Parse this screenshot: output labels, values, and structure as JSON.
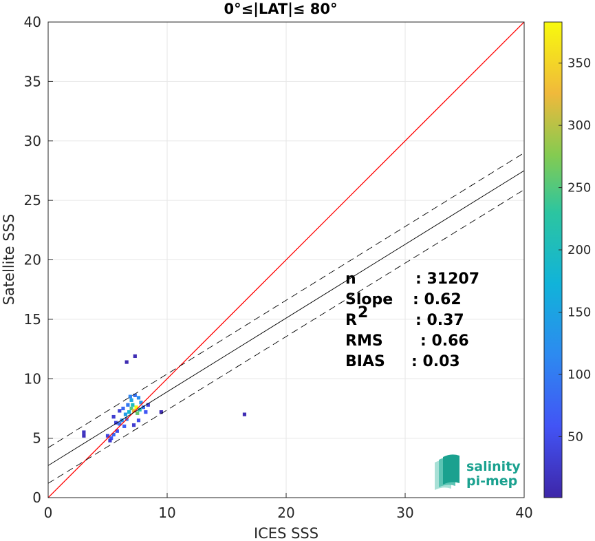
{
  "chart_data": {
    "type": "heatmap",
    "title": "0°≤|LAT|≤ 80°",
    "xlabel": "ICES SSS",
    "ylabel": "Satellite SSS",
    "xlim": [
      0,
      40
    ],
    "ylim": [
      0,
      40
    ],
    "xticks": [
      "0",
      "10",
      "20",
      "30",
      "40"
    ],
    "yticks": [
      "0",
      "5",
      "10",
      "15",
      "20",
      "25",
      "30",
      "35",
      "40"
    ],
    "grid": true,
    "colorbar": {
      "range": [
        1,
        383
      ],
      "ticks": [
        "50",
        "100",
        "150",
        "200",
        "250",
        "300",
        "350"
      ],
      "colormap": "parula"
    },
    "lines": [
      {
        "kind": "one-to-one",
        "color": "#ff0000",
        "x": [
          0,
          40
        ],
        "y": [
          0,
          40
        ]
      },
      {
        "kind": "regression",
        "color": "#000000",
        "x": [
          0,
          40
        ],
        "y": [
          2.7,
          27.5
        ]
      },
      {
        "kind": "regression-plus",
        "color": "#000000",
        "dash": true,
        "x": [
          0,
          40
        ],
        "y": [
          4.2,
          29.0
        ]
      },
      {
        "kind": "regression-minus",
        "color": "#000000",
        "dash": true,
        "x": [
          0,
          40
        ],
        "y": [
          1.2,
          25.9
        ]
      }
    ],
    "density_cells": [
      {
        "x": 3.0,
        "y": 5.5,
        "v": 20
      },
      {
        "x": 3.0,
        "y": 5.2,
        "v": 15
      },
      {
        "x": 5.0,
        "y": 5.2,
        "v": 40
      },
      {
        "x": 5.3,
        "y": 5.0,
        "v": 60
      },
      {
        "x": 5.5,
        "y": 5.3,
        "v": 80
      },
      {
        "x": 5.2,
        "y": 4.8,
        "v": 30
      },
      {
        "x": 5.8,
        "y": 5.6,
        "v": 50
      },
      {
        "x": 6.0,
        "y": 6.2,
        "v": 90
      },
      {
        "x": 6.2,
        "y": 6.5,
        "v": 120
      },
      {
        "x": 6.4,
        "y": 6.0,
        "v": 70
      },
      {
        "x": 6.5,
        "y": 7.0,
        "v": 140
      },
      {
        "x": 6.8,
        "y": 7.2,
        "v": 180
      },
      {
        "x": 6.6,
        "y": 6.6,
        "v": 100
      },
      {
        "x": 7.0,
        "y": 7.5,
        "v": 250
      },
      {
        "x": 7.2,
        "y": 7.3,
        "v": 320
      },
      {
        "x": 7.4,
        "y": 7.6,
        "v": 383
      },
      {
        "x": 7.1,
        "y": 7.8,
        "v": 200
      },
      {
        "x": 7.5,
        "y": 7.1,
        "v": 260
      },
      {
        "x": 7.7,
        "y": 7.4,
        "v": 210
      },
      {
        "x": 7.0,
        "y": 8.2,
        "v": 150
      },
      {
        "x": 6.9,
        "y": 8.5,
        "v": 110
      },
      {
        "x": 7.3,
        "y": 8.6,
        "v": 90
      },
      {
        "x": 7.8,
        "y": 8.0,
        "v": 130
      },
      {
        "x": 8.0,
        "y": 7.6,
        "v": 90
      },
      {
        "x": 7.6,
        "y": 8.4,
        "v": 120
      },
      {
        "x": 6.3,
        "y": 7.5,
        "v": 80
      },
      {
        "x": 6.7,
        "y": 7.8,
        "v": 100
      },
      {
        "x": 8.2,
        "y": 7.2,
        "v": 60
      },
      {
        "x": 5.7,
        "y": 6.3,
        "v": 40
      },
      {
        "x": 5.5,
        "y": 6.8,
        "v": 30
      },
      {
        "x": 6.0,
        "y": 7.3,
        "v": 35
      },
      {
        "x": 7.6,
        "y": 6.5,
        "v": 50
      },
      {
        "x": 7.2,
        "y": 6.1,
        "v": 30
      },
      {
        "x": 8.4,
        "y": 7.8,
        "v": 40
      },
      {
        "x": 7.3,
        "y": 11.9,
        "v": 10
      },
      {
        "x": 6.6,
        "y": 11.4,
        "v": 8
      },
      {
        "x": 9.5,
        "y": 7.2,
        "v": 10
      },
      {
        "x": 16.5,
        "y": 7.0,
        "v": 10
      }
    ]
  },
  "stats": [
    {
      "label": "n",
      "value": ": 31207"
    },
    {
      "label": "Slope",
      "value": ": 0.62"
    },
    {
      "label": "R",
      "sup": "2",
      "value": ": 0.37"
    },
    {
      "label": "RMS",
      "value": ": 0.66"
    },
    {
      "label": "BIAS",
      "value": ": 0.03"
    }
  ],
  "logo": {
    "line1": "salinity",
    "line2": "pi-mep",
    "colors": [
      "#1aa18f",
      "#5cc4b4",
      "#a8e0d6"
    ]
  }
}
